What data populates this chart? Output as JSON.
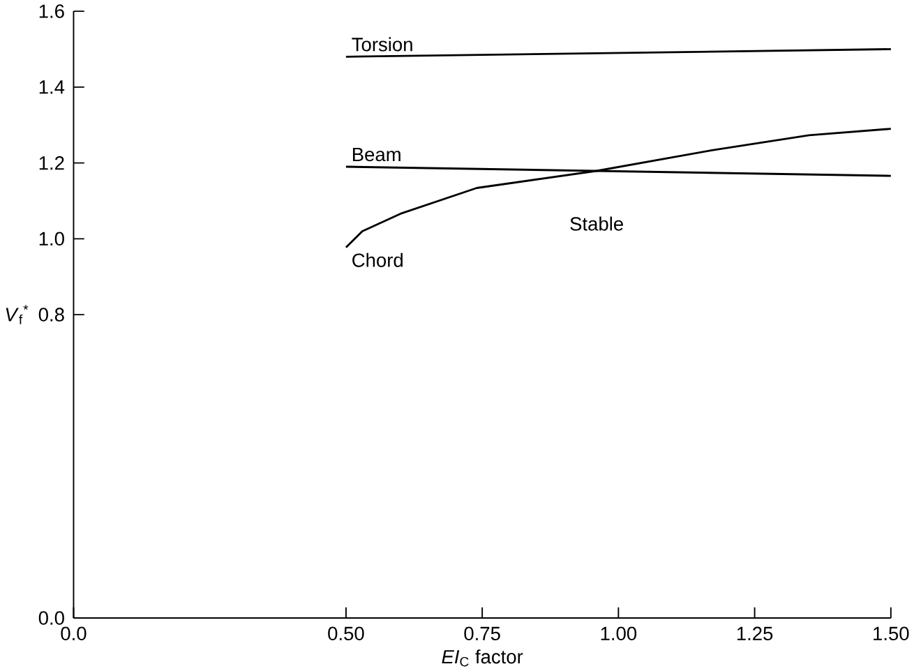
{
  "chart_data": {
    "type": "line",
    "xlabel": "*EI*$_{C}$ factor",
    "ylabel": "*V*$_{f}$$^{*}$",
    "xlim": [
      0,
      1.5
    ],
    "xticks": [
      {
        "value": 0,
        "label": "0.0"
      },
      {
        "value": 0.5,
        "label": "0.50"
      },
      {
        "value": 0.75,
        "label": "0.75"
      },
      {
        "value": 1,
        "label": "1.00"
      },
      {
        "value": 1.25,
        "label": "1.25"
      },
      {
        "value": 1.5,
        "label": "1.50"
      }
    ],
    "ylim": [
      0,
      1.6
    ],
    "yticks": [
      {
        "value": 0,
        "label": "0.0"
      },
      {
        "value": 0.8,
        "label": "0.8"
      },
      {
        "value": 1,
        "label": "1.0"
      },
      {
        "value": 1.2,
        "label": "1.2"
      },
      {
        "value": 1.4,
        "label": "1.4"
      },
      {
        "value": 1.6,
        "label": "1.6"
      }
    ],
    "series": [
      {
        "name": "Torsion",
        "color": "#000000",
        "x": [
          0.5,
          1.5
        ],
        "values": [
          1.48,
          1.5
        ]
      },
      {
        "name": "Beam",
        "color": "#000000",
        "x": [
          0.5,
          1.5
        ],
        "values": [
          1.19,
          1.166
        ]
      },
      {
        "name": "Chord",
        "color": "#000000",
        "x": [
          0.5,
          0.53,
          0.6,
          0.74,
          0.96,
          1.17,
          1.35,
          1.5
        ],
        "values": [
          0.977,
          1.02,
          1.066,
          1.134,
          1.179,
          1.233,
          1.273,
          1.29
        ]
      }
    ],
    "annotations": [
      "Stable"
    ],
    "grid": false,
    "legend": false
  }
}
